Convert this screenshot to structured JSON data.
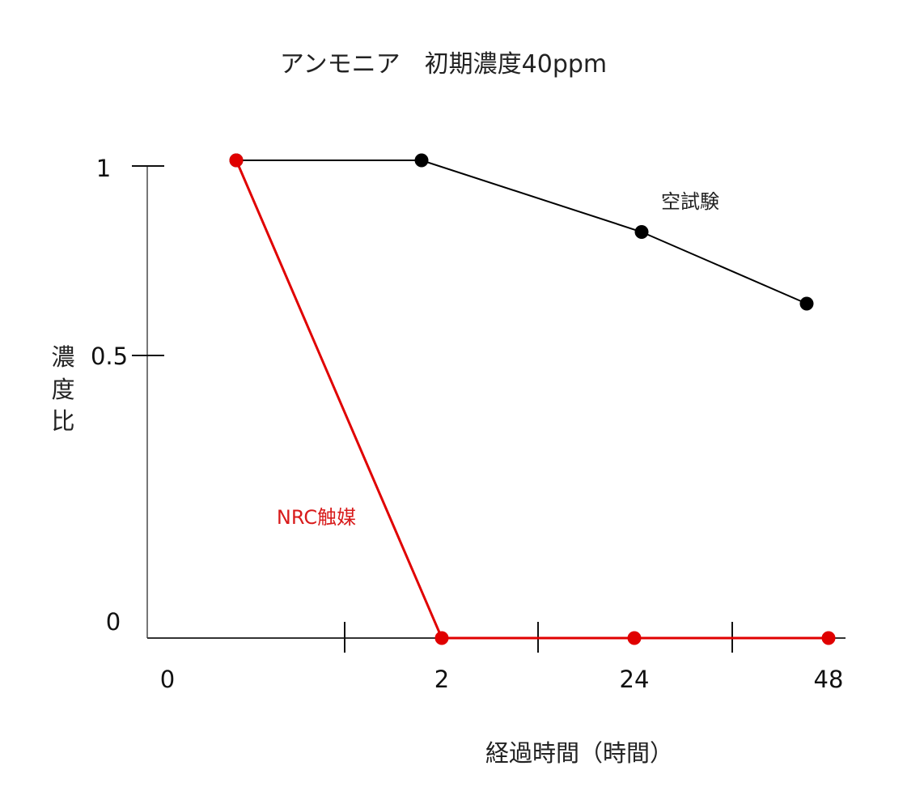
{
  "chart_data": {
    "type": "line",
    "title": "アンモニア　初期濃度40ppm",
    "xlabel": "経過時間（時間）",
    "ylabel": [
      "濃",
      "度",
      "比"
    ],
    "x_tick_labels": [
      "0",
      "2",
      "24",
      "48"
    ],
    "y_tick_labels": [
      "1",
      "0.5",
      "0"
    ],
    "ylim": [
      0,
      1
    ],
    "series": [
      {
        "name": "空試験",
        "color": "#000000",
        "points": [
          {
            "x": "0",
            "y": 1.0
          },
          {
            "x": "2",
            "y": 1.0
          },
          {
            "x": "24",
            "y": 0.85
          },
          {
            "x": "48",
            "y": 0.7
          }
        ]
      },
      {
        "name": "NRC触媒",
        "color": "#e00000",
        "points": [
          {
            "x": "0",
            "y": 1.0
          },
          {
            "x": "2",
            "y": 0.0
          },
          {
            "x": "24",
            "y": 0.0
          },
          {
            "x": "48",
            "y": 0.0
          }
        ]
      }
    ],
    "grid": false,
    "legend": "inline labels"
  }
}
